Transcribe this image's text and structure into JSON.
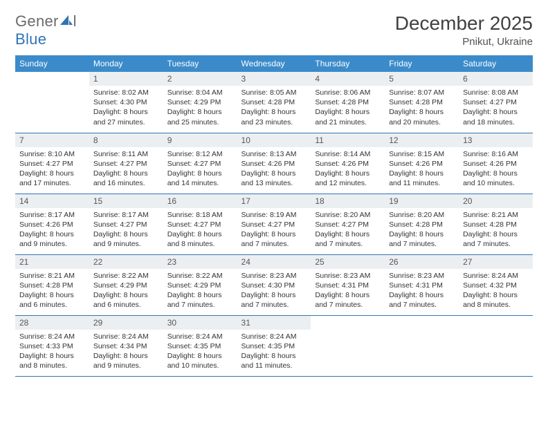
{
  "brand": {
    "part1": "Gener",
    "part2": "l",
    "part3": "Blue"
  },
  "title": "December 2025",
  "location": "Pnikut, Ukraine",
  "weekday_labels": [
    "Sunday",
    "Monday",
    "Tuesday",
    "Wednesday",
    "Thursday",
    "Friday",
    "Saturday"
  ],
  "colors": {
    "header_bg": "#3b8bca",
    "row_border": "#2f74b5",
    "daynum_bg": "#eceff1",
    "brand_blue": "#2f74b5",
    "brand_gray": "#6a6a6a"
  },
  "weeks": [
    [
      {
        "empty": true
      },
      {
        "n": "1",
        "sr": "Sunrise: 8:02 AM",
        "ss": "Sunset: 4:30 PM",
        "d1": "Daylight: 8 hours",
        "d2": "and 27 minutes."
      },
      {
        "n": "2",
        "sr": "Sunrise: 8:04 AM",
        "ss": "Sunset: 4:29 PM",
        "d1": "Daylight: 8 hours",
        "d2": "and 25 minutes."
      },
      {
        "n": "3",
        "sr": "Sunrise: 8:05 AM",
        "ss": "Sunset: 4:28 PM",
        "d1": "Daylight: 8 hours",
        "d2": "and 23 minutes."
      },
      {
        "n": "4",
        "sr": "Sunrise: 8:06 AM",
        "ss": "Sunset: 4:28 PM",
        "d1": "Daylight: 8 hours",
        "d2": "and 21 minutes."
      },
      {
        "n": "5",
        "sr": "Sunrise: 8:07 AM",
        "ss": "Sunset: 4:28 PM",
        "d1": "Daylight: 8 hours",
        "d2": "and 20 minutes."
      },
      {
        "n": "6",
        "sr": "Sunrise: 8:08 AM",
        "ss": "Sunset: 4:27 PM",
        "d1": "Daylight: 8 hours",
        "d2": "and 18 minutes."
      }
    ],
    [
      {
        "n": "7",
        "sr": "Sunrise: 8:10 AM",
        "ss": "Sunset: 4:27 PM",
        "d1": "Daylight: 8 hours",
        "d2": "and 17 minutes."
      },
      {
        "n": "8",
        "sr": "Sunrise: 8:11 AM",
        "ss": "Sunset: 4:27 PM",
        "d1": "Daylight: 8 hours",
        "d2": "and 16 minutes."
      },
      {
        "n": "9",
        "sr": "Sunrise: 8:12 AM",
        "ss": "Sunset: 4:27 PM",
        "d1": "Daylight: 8 hours",
        "d2": "and 14 minutes."
      },
      {
        "n": "10",
        "sr": "Sunrise: 8:13 AM",
        "ss": "Sunset: 4:26 PM",
        "d1": "Daylight: 8 hours",
        "d2": "and 13 minutes."
      },
      {
        "n": "11",
        "sr": "Sunrise: 8:14 AM",
        "ss": "Sunset: 4:26 PM",
        "d1": "Daylight: 8 hours",
        "d2": "and 12 minutes."
      },
      {
        "n": "12",
        "sr": "Sunrise: 8:15 AM",
        "ss": "Sunset: 4:26 PM",
        "d1": "Daylight: 8 hours",
        "d2": "and 11 minutes."
      },
      {
        "n": "13",
        "sr": "Sunrise: 8:16 AM",
        "ss": "Sunset: 4:26 PM",
        "d1": "Daylight: 8 hours",
        "d2": "and 10 minutes."
      }
    ],
    [
      {
        "n": "14",
        "sr": "Sunrise: 8:17 AM",
        "ss": "Sunset: 4:26 PM",
        "d1": "Daylight: 8 hours",
        "d2": "and 9 minutes."
      },
      {
        "n": "15",
        "sr": "Sunrise: 8:17 AM",
        "ss": "Sunset: 4:27 PM",
        "d1": "Daylight: 8 hours",
        "d2": "and 9 minutes."
      },
      {
        "n": "16",
        "sr": "Sunrise: 8:18 AM",
        "ss": "Sunset: 4:27 PM",
        "d1": "Daylight: 8 hours",
        "d2": "and 8 minutes."
      },
      {
        "n": "17",
        "sr": "Sunrise: 8:19 AM",
        "ss": "Sunset: 4:27 PM",
        "d1": "Daylight: 8 hours",
        "d2": "and 7 minutes."
      },
      {
        "n": "18",
        "sr": "Sunrise: 8:20 AM",
        "ss": "Sunset: 4:27 PM",
        "d1": "Daylight: 8 hours",
        "d2": "and 7 minutes."
      },
      {
        "n": "19",
        "sr": "Sunrise: 8:20 AM",
        "ss": "Sunset: 4:28 PM",
        "d1": "Daylight: 8 hours",
        "d2": "and 7 minutes."
      },
      {
        "n": "20",
        "sr": "Sunrise: 8:21 AM",
        "ss": "Sunset: 4:28 PM",
        "d1": "Daylight: 8 hours",
        "d2": "and 7 minutes."
      }
    ],
    [
      {
        "n": "21",
        "sr": "Sunrise: 8:21 AM",
        "ss": "Sunset: 4:28 PM",
        "d1": "Daylight: 8 hours",
        "d2": "and 6 minutes."
      },
      {
        "n": "22",
        "sr": "Sunrise: 8:22 AM",
        "ss": "Sunset: 4:29 PM",
        "d1": "Daylight: 8 hours",
        "d2": "and 6 minutes."
      },
      {
        "n": "23",
        "sr": "Sunrise: 8:22 AM",
        "ss": "Sunset: 4:29 PM",
        "d1": "Daylight: 8 hours",
        "d2": "and 7 minutes."
      },
      {
        "n": "24",
        "sr": "Sunrise: 8:23 AM",
        "ss": "Sunset: 4:30 PM",
        "d1": "Daylight: 8 hours",
        "d2": "and 7 minutes."
      },
      {
        "n": "25",
        "sr": "Sunrise: 8:23 AM",
        "ss": "Sunset: 4:31 PM",
        "d1": "Daylight: 8 hours",
        "d2": "and 7 minutes."
      },
      {
        "n": "26",
        "sr": "Sunrise: 8:23 AM",
        "ss": "Sunset: 4:31 PM",
        "d1": "Daylight: 8 hours",
        "d2": "and 7 minutes."
      },
      {
        "n": "27",
        "sr": "Sunrise: 8:24 AM",
        "ss": "Sunset: 4:32 PM",
        "d1": "Daylight: 8 hours",
        "d2": "and 8 minutes."
      }
    ],
    [
      {
        "n": "28",
        "sr": "Sunrise: 8:24 AM",
        "ss": "Sunset: 4:33 PM",
        "d1": "Daylight: 8 hours",
        "d2": "and 8 minutes."
      },
      {
        "n": "29",
        "sr": "Sunrise: 8:24 AM",
        "ss": "Sunset: 4:34 PM",
        "d1": "Daylight: 8 hours",
        "d2": "and 9 minutes."
      },
      {
        "n": "30",
        "sr": "Sunrise: 8:24 AM",
        "ss": "Sunset: 4:35 PM",
        "d1": "Daylight: 8 hours",
        "d2": "and 10 minutes."
      },
      {
        "n": "31",
        "sr": "Sunrise: 8:24 AM",
        "ss": "Sunset: 4:35 PM",
        "d1": "Daylight: 8 hours",
        "d2": "and 11 minutes."
      },
      {
        "empty": true
      },
      {
        "empty": true
      },
      {
        "empty": true
      }
    ]
  ]
}
